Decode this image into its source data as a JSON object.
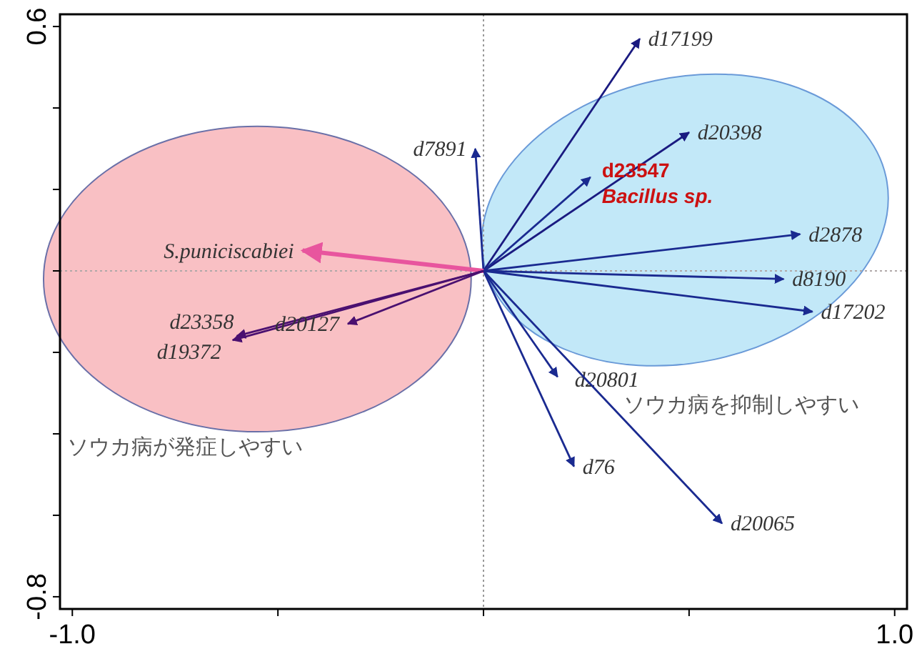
{
  "chart_data": {
    "type": "line",
    "xlim": [
      -1.03,
      1.03
    ],
    "ylim": [
      -0.83,
      0.63
    ],
    "xticks": [
      {
        "value": -1.0,
        "label": "-1.0"
      },
      {
        "value": -0.5,
        "label": null
      },
      {
        "value": 0,
        "label": null
      },
      {
        "value": 0.5,
        "label": null
      },
      {
        "value": 1.0,
        "label": "1.0"
      }
    ],
    "yticks": [
      {
        "value": 0.6,
        "label": "0.6"
      },
      {
        "value": 0.4,
        "label": null
      },
      {
        "value": 0.2,
        "label": null
      },
      {
        "value": 0,
        "label": null
      },
      {
        "value": -0.2,
        "label": null
      },
      {
        "value": -0.4,
        "label": null
      },
      {
        "value": -0.6,
        "label": null
      },
      {
        "value": -0.8,
        "label": "-0.8"
      }
    ],
    "grid": false,
    "marker": "none",
    "line_style": "solid",
    "ref_lines": [
      {
        "axis": "x",
        "value": 0,
        "color": "#999999",
        "line_style": "dotted"
      },
      {
        "axis": "y",
        "value": 0,
        "color": "#b0a8a8",
        "line_style": "dotted"
      }
    ],
    "annotations": [
      "ソウカ病が発症しやすい",
      "ソウカ病を抑制しやすい"
    ],
    "series": [
      {
        "name": "d17199",
        "color": "#1a1a80",
        "x": [
          0,
          0.38
        ],
        "values": [
          0,
          0.57
        ]
      },
      {
        "name": "d20398",
        "color": "#1a1a80",
        "x": [
          0,
          0.5
        ],
        "values": [
          0,
          0.34
        ]
      },
      {
        "name": "d23547 Bacillus sp.",
        "color": "#1a2a90",
        "x": [
          0,
          0.26
        ],
        "values": [
          0,
          0.23
        ]
      },
      {
        "name": "d2878",
        "color": "#1a2a90",
        "x": [
          0,
          0.77
        ],
        "values": [
          0,
          0.09
        ]
      },
      {
        "name": "d8190",
        "color": "#1a2a90",
        "x": [
          0,
          0.73
        ],
        "values": [
          0,
          -0.02
        ]
      },
      {
        "name": "d17202",
        "color": "#1a2a90",
        "x": [
          0,
          0.8
        ],
        "values": [
          0,
          -0.1
        ]
      },
      {
        "name": "d20801",
        "color": "#1a2a90",
        "x": [
          0,
          0.18
        ],
        "values": [
          0,
          -0.26
        ]
      },
      {
        "name": "d76",
        "color": "#1a2a90",
        "x": [
          0,
          0.22
        ],
        "values": [
          0,
          -0.48
        ]
      },
      {
        "name": "d20065",
        "color": "#1a2a90",
        "x": [
          0,
          0.58
        ],
        "values": [
          0,
          -0.62
        ]
      },
      {
        "name": "d7891",
        "color": "#1a2a90",
        "x": [
          0,
          -0.02
        ],
        "values": [
          0,
          0.3
        ]
      },
      {
        "name": "S.puniciscabiei",
        "color": "#e8559e",
        "x": [
          0,
          -0.44
        ],
        "values": [
          0,
          0.05
        ]
      },
      {
        "name": "d23358",
        "color": "#4a1070",
        "x": [
          0,
          -0.6
        ],
        "values": [
          0,
          -0.16
        ]
      },
      {
        "name": "d19372",
        "color": "#4a1070",
        "x": [
          0,
          -0.61
        ],
        "values": [
          0,
          -0.17
        ]
      },
      {
        "name": "d20127",
        "color": "#4a1070",
        "x": [
          0,
          -0.33
        ],
        "values": [
          0,
          -0.13
        ]
      }
    ]
  }
}
